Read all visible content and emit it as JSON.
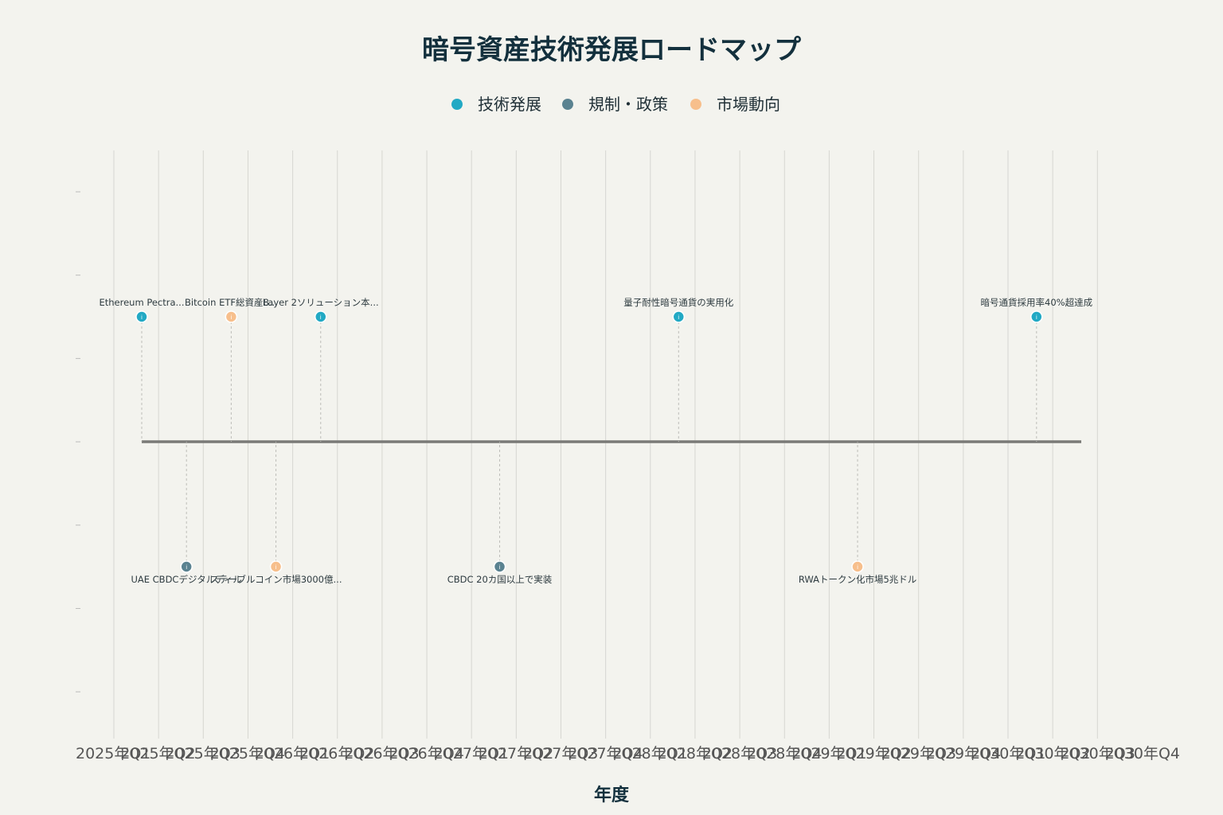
{
  "chart_data": {
    "type": "scatter",
    "title": "暗号資産技術発展ロードマップ",
    "xlabel": "年度",
    "ylabel": "",
    "grid": true,
    "legend_position": "top-center",
    "categories": [
      "2025年Q1",
      "2025年Q2",
      "2025年Q3",
      "2025年Q4",
      "2026年Q1",
      "2026年Q2",
      "2026年Q3",
      "2026年Q4",
      "2027年Q1",
      "2027年Q2",
      "2027年Q3",
      "2027年Q4",
      "2028年Q1",
      "2028年Q2",
      "2028年Q3",
      "2028年Q4",
      "2029年Q1",
      "2029年Q2",
      "2029年Q3",
      "2029年Q4",
      "2030年Q1",
      "2030年Q2",
      "2030年Q3",
      "2030年Q4"
    ],
    "series": [
      {
        "name": "技術発展",
        "color": "#22a9c4",
        "values": [
          {
            "x": "2025年Q1",
            "side": "above",
            "label": "Ethereum Pectra..."
          },
          {
            "x": "2026年Q1",
            "side": "above",
            "label": "Layer 2ソリューション本..."
          },
          {
            "x": "2028年Q1",
            "side": "above",
            "label": "量子耐性暗号通貨の実用化"
          },
          {
            "x": "2030年Q1",
            "side": "above",
            "label": "暗号通貨採用率40%超達成"
          }
        ]
      },
      {
        "name": "規制・政策",
        "color": "#5a8290",
        "values": [
          {
            "x": "2025年Q2",
            "side": "below",
            "label": "UAE CBDCデジタルディル"
          },
          {
            "x": "2027年Q1",
            "side": "below",
            "label": "CBDC 20カ国以上で実装"
          }
        ]
      },
      {
        "name": "市場動向",
        "color": "#f7bf8c",
        "values": [
          {
            "x": "2025年Q3",
            "side": "above",
            "label": "Bitcoin ETF総資産8..."
          },
          {
            "x": "2025年Q4",
            "side": "below",
            "label": "ステーブルコイン市場3000億..."
          },
          {
            "x": "2029年Q1",
            "side": "below",
            "label": "RWAトークン化市場5兆ドル"
          }
        ]
      }
    ]
  }
}
